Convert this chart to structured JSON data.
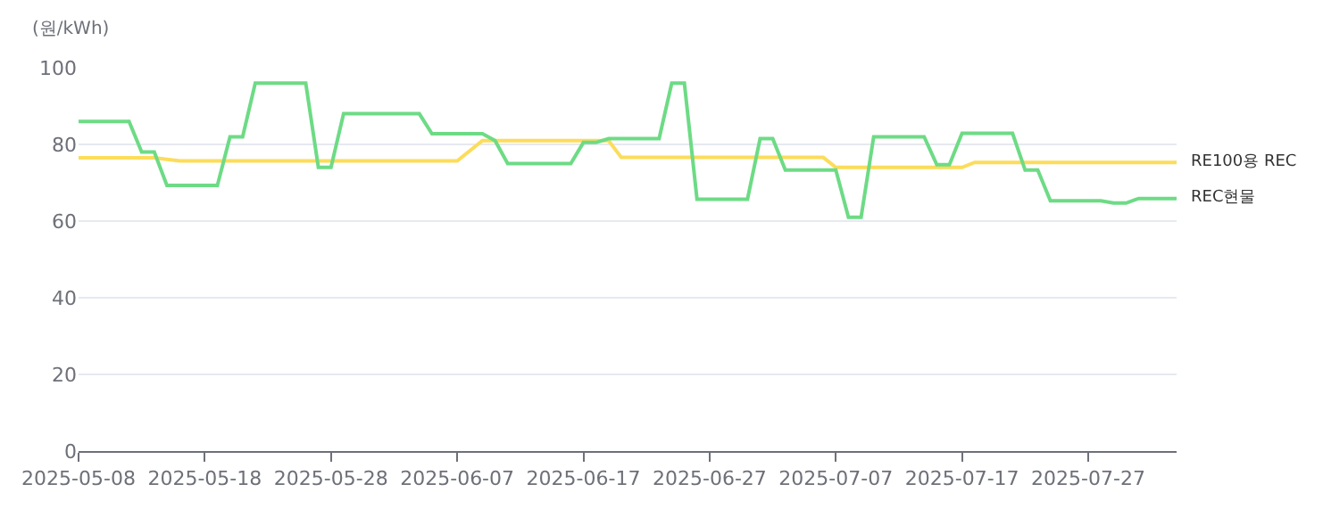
{
  "chart_data": {
    "type": "line",
    "ylabel": "(원/kWh)",
    "xlim": [
      "2025-05-08",
      "2025-08-03"
    ],
    "xticks": [
      "2025-05-08",
      "2025-05-18",
      "2025-05-28",
      "2025-06-07",
      "2025-06-17",
      "2025-06-27",
      "2025-07-07",
      "2025-07-17",
      "2025-07-27"
    ],
    "ylim": [
      0,
      100
    ],
    "yticks": [
      0,
      20,
      40,
      60,
      80,
      100
    ],
    "grid": "y",
    "legend": false,
    "marker": "none",
    "line_style": "solid",
    "series": [
      {
        "name": "RE100용 REC",
        "color": "#fcdc5a",
        "x": [
          "2025-05-08",
          "2025-05-14",
          "2025-05-16",
          "2025-06-07",
          "2025-06-09",
          "2025-06-19",
          "2025-06-20",
          "2025-07-06",
          "2025-07-07",
          "2025-07-17",
          "2025-07-18",
          "2025-08-03"
        ],
        "values": [
          76.5,
          76.5,
          75.7,
          75.7,
          81,
          81,
          76.6,
          76.6,
          74,
          74,
          75.3,
          75.3
        ]
      },
      {
        "name": "REC현물",
        "color": "#6ddb85",
        "x": [
          "2025-05-08",
          "2025-05-12",
          "2025-05-13",
          "2025-05-14",
          "2025-05-15",
          "2025-05-19",
          "2025-05-20",
          "2025-05-21",
          "2025-05-22",
          "2025-05-26",
          "2025-05-27",
          "2025-05-28",
          "2025-05-29",
          "2025-06-04",
          "2025-06-05",
          "2025-06-09",
          "2025-06-10",
          "2025-06-11",
          "2025-06-16",
          "2025-06-17",
          "2025-06-18",
          "2025-06-19",
          "2025-06-23",
          "2025-06-24",
          "2025-06-25",
          "2025-06-26",
          "2025-06-30",
          "2025-07-01",
          "2025-07-02",
          "2025-07-03",
          "2025-07-07",
          "2025-07-08",
          "2025-07-09",
          "2025-07-10",
          "2025-07-14",
          "2025-07-15",
          "2025-07-16",
          "2025-07-17",
          "2025-07-21",
          "2025-07-22",
          "2025-07-23",
          "2025-07-24",
          "2025-07-28",
          "2025-07-29",
          "2025-07-30",
          "2025-07-31",
          "2025-08-03"
        ],
        "values": [
          86,
          86,
          78,
          78,
          69.3,
          69.3,
          82,
          82,
          96,
          96,
          74,
          74,
          88,
          88,
          82.8,
          82.8,
          81,
          75,
          75,
          80.5,
          80.5,
          81.5,
          81.5,
          96,
          96,
          65.7,
          65.7,
          81.5,
          81.5,
          73.3,
          73.3,
          61,
          61,
          82,
          82,
          74.7,
          74.7,
          82.9,
          82.9,
          73.3,
          73.3,
          65.3,
          65.3,
          64.7,
          64.7,
          65.9,
          65.9
        ]
      }
    ]
  }
}
